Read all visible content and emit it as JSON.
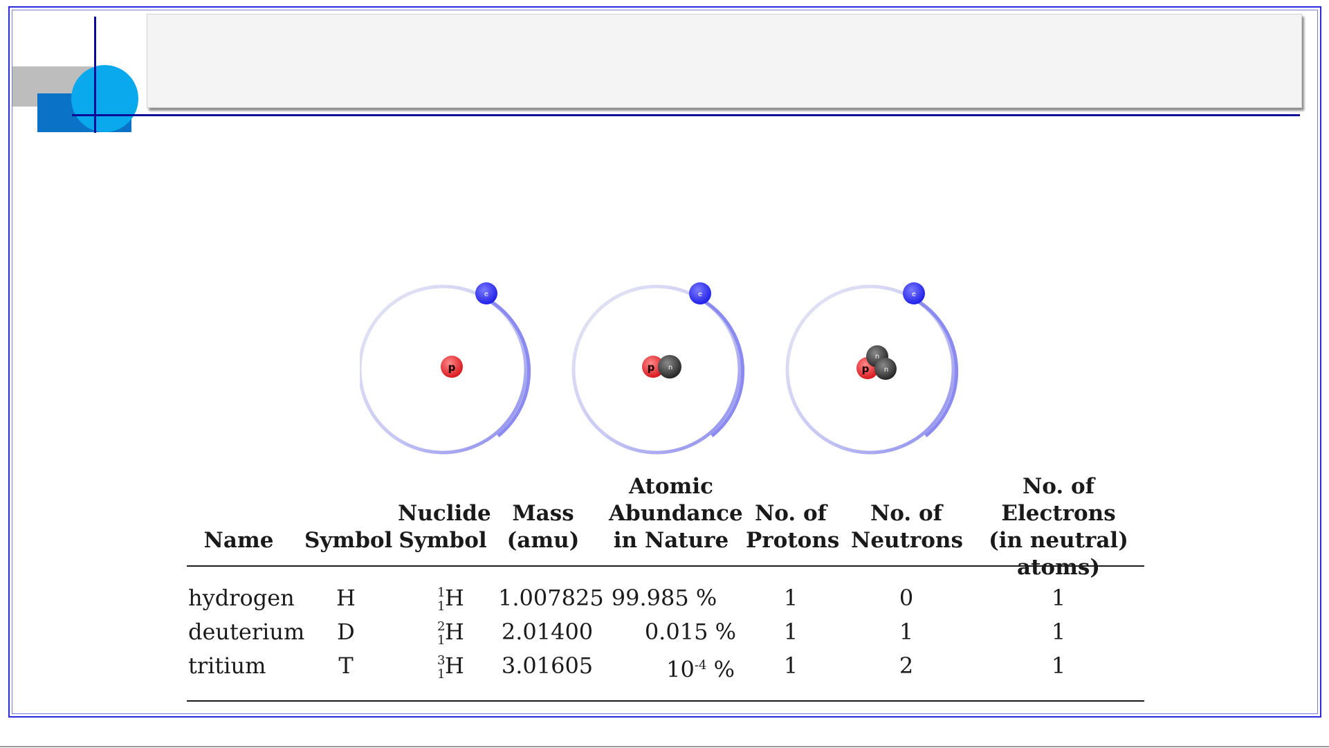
{
  "slide": {
    "title": ""
  },
  "atoms": [
    {
      "name": "hydrogen",
      "particles": [
        "p"
      ]
    },
    {
      "name": "deuterium",
      "particles": [
        "p",
        "n"
      ]
    },
    {
      "name": "tritium",
      "particles": [
        "p",
        "n",
        "n"
      ]
    }
  ],
  "labels": {
    "electron": "e",
    "proton": "p",
    "neutron": "n"
  },
  "colors": {
    "electron": "#3a3af2",
    "proton": "#e8262c",
    "neutron": "#3a3a3a",
    "orbit": "#9a9af0",
    "frame": "#2a2adf"
  },
  "table": {
    "headers": [
      "Name",
      "Symbol",
      "Nuclide Symbol",
      "Mass (amu)",
      "Atomic Abundance in Nature",
      "No. of Protons",
      "No. of Neutrons",
      "No. of Electrons (in neutral) atoms)"
    ],
    "header_lines": [
      [
        "Name"
      ],
      [
        "Symbol"
      ],
      [
        "Nuclide",
        "Symbol"
      ],
      [
        "Mass",
        "(amu)"
      ],
      [
        "Atomic",
        "Abundance",
        "in Nature"
      ],
      [
        "No. of",
        "Protons"
      ],
      [
        "No. of",
        "Neutrons"
      ],
      [
        "No. of Electrons",
        "(in neutral)",
        "atoms)"
      ]
    ],
    "rows": [
      {
        "name": "hydrogen",
        "symbol": "H",
        "nuclide_mass": "1",
        "nuclide_atomic": "1",
        "nuclide_element": "H",
        "mass": "1.007825",
        "abundance": "99.985 %",
        "abundance_exp": "",
        "protons": "1",
        "neutrons": "0",
        "electrons": "1"
      },
      {
        "name": "deuterium",
        "symbol": "D",
        "nuclide_mass": "2",
        "nuclide_atomic": "1",
        "nuclide_element": "H",
        "mass": "2.01400",
        "abundance": "0.015 %",
        "abundance_exp": "",
        "protons": "1",
        "neutrons": "1",
        "electrons": "1"
      },
      {
        "name": "tritium",
        "symbol": "T",
        "nuclide_mass": "3",
        "nuclide_atomic": "1",
        "nuclide_element": "H",
        "mass": "3.01605",
        "abundance": "10",
        "abundance_exp": "-4",
        "abundance_unit": "%",
        "protons": "1",
        "neutrons": "2",
        "electrons": "1"
      }
    ]
  }
}
